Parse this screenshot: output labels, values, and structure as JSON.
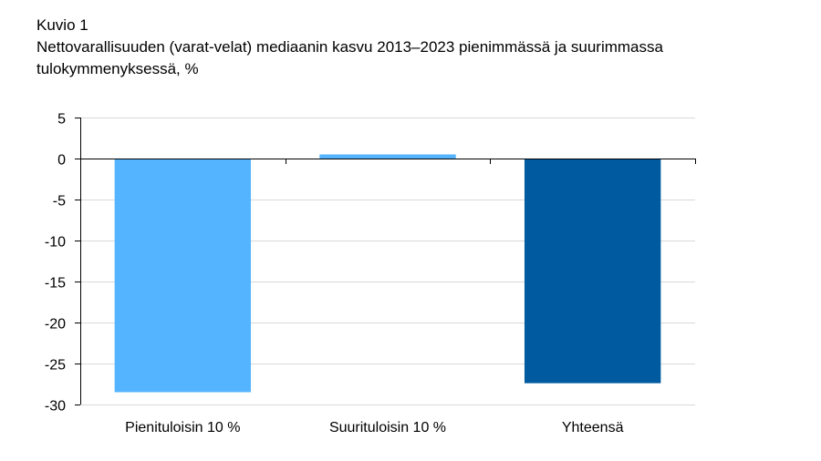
{
  "figure_label": "Kuvio 1",
  "chart_data": {
    "type": "bar",
    "title": "Nettovarallisuuden (varat-velat) mediaanin kasvu 2013–2023 pienimmässä ja suurimmassa tulokymmenyksessä, %",
    "categories": [
      "Pienituloisin 10 %",
      "Suurituloisin 10 %",
      "Yhteensä"
    ],
    "values": [
      -28.5,
      0.5,
      -27.4
    ],
    "colors": [
      "#55b4ff",
      "#55b4ff",
      "#005aa0"
    ],
    "ylim": [
      -30,
      5
    ],
    "yticks": [
      5,
      0,
      -5,
      -10,
      -15,
      -20,
      -25,
      -30
    ],
    "ytick_labels": [
      "5",
      "0",
      "-5",
      "-10",
      "-15",
      "-20",
      "-25",
      "-30"
    ],
    "grid": true,
    "xlabel": "",
    "ylabel": "",
    "axis_color": "#000000",
    "grid_color": "#d9d9d9"
  }
}
